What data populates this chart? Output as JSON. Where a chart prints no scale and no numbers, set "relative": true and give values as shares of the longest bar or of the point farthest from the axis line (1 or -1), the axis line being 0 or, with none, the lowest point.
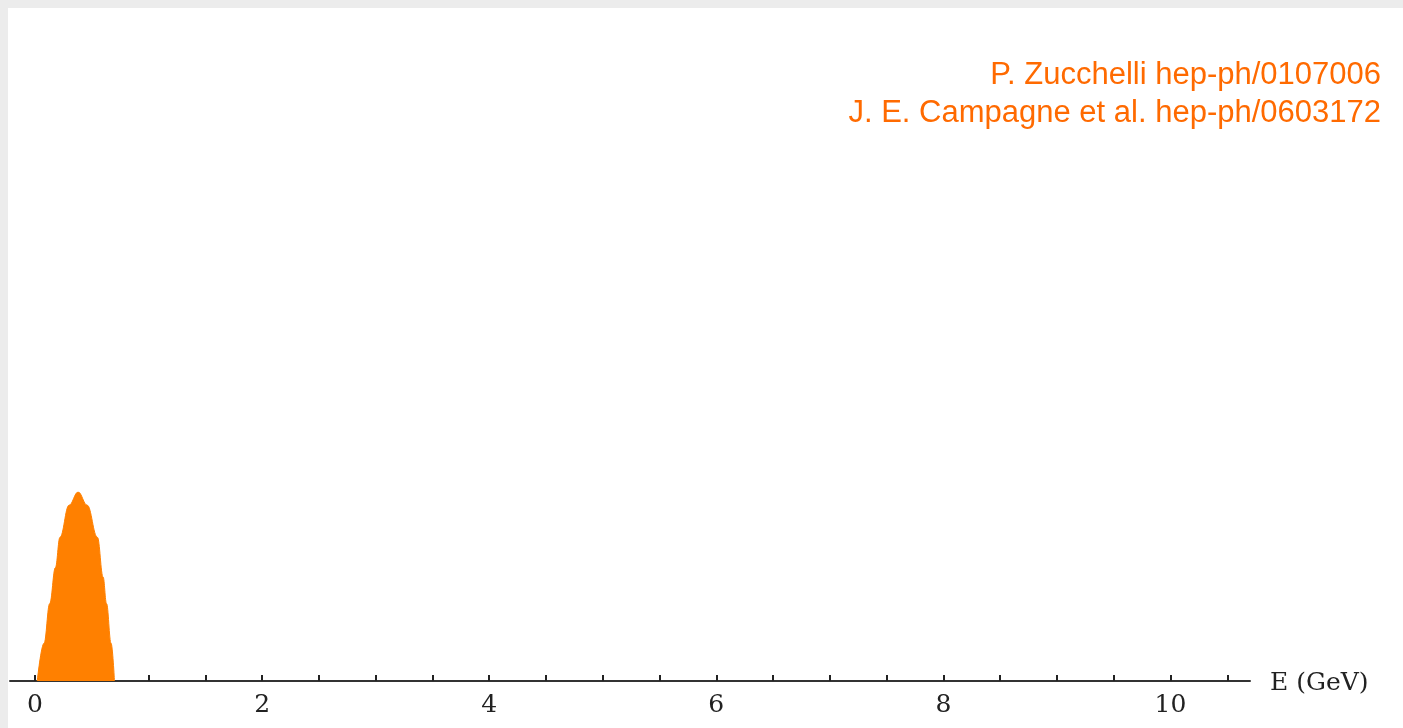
{
  "chart_data": {
    "type": "area",
    "relative": true,
    "xlabel": "E (GeV)",
    "annotations": [
      "P. Zucchelli hep-ph/0107006",
      "J. E. Campagne et al. hep-ph/0603172"
    ],
    "xlim": [
      -0.22,
      10.7
    ],
    "xticks": [
      0,
      {
        "value": 0.5,
        "label": null
      },
      {
        "value": 1,
        "label": null
      },
      {
        "value": 1.5,
        "label": null
      },
      2,
      {
        "value": 2.5,
        "label": null
      },
      {
        "value": 3,
        "label": null
      },
      {
        "value": 3.5,
        "label": null
      },
      4,
      {
        "value": 4.5,
        "label": null
      },
      {
        "value": 5,
        "label": null
      },
      {
        "value": 5.5,
        "label": null
      },
      6,
      {
        "value": 6.5,
        "label": null
      },
      {
        "value": 7,
        "label": null
      },
      {
        "value": 7.5,
        "label": null
      },
      8,
      {
        "value": 8.5,
        "label": null
      },
      {
        "value": 9,
        "label": null
      },
      {
        "value": 9.5,
        "label": null
      },
      10,
      {
        "value": 10.5,
        "label": null
      }
    ],
    "series": [
      {
        "color": "#ff8000",
        "x": [
          0.02,
          0.08,
          0.13,
          0.18,
          0.22,
          0.3,
          0.38,
          0.46,
          0.55,
          0.6,
          0.63,
          0.67,
          0.7
        ],
        "values": [
          0,
          0.2,
          0.41,
          0.6,
          0.76,
          0.93,
          1,
          0.93,
          0.76,
          0.55,
          0.41,
          0.2,
          0
        ]
      }
    ]
  }
}
